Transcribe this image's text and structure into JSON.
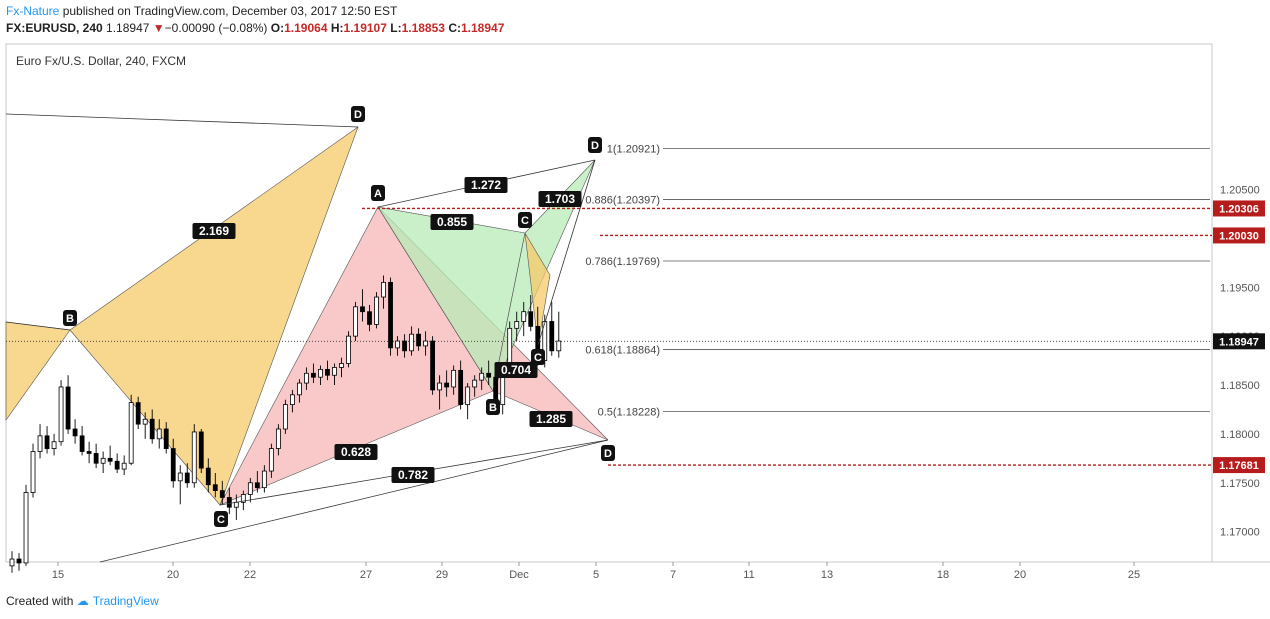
{
  "header": {
    "author": "Fx-Nature",
    "published": "published on TradingView.com, December 03, 2017 12:50 EST",
    "symbol": "FX:EURUSD, 240",
    "last": "1.18947",
    "change": "−0.00090 (−0.08%)",
    "open_label": "O:",
    "open": "1.19064",
    "high_label": "H:",
    "high": "1.19107",
    "low_label": "L:",
    "low": "1.18853",
    "close_label": "C:",
    "close": "1.18947"
  },
  "footer": {
    "created_with": "Created with",
    "brand": "TradingView"
  },
  "chart_data": {
    "type": "candlestick",
    "title": "Euro Fx/U.S. Dollar, 240, FXCM",
    "x_ticks": [
      "15",
      "20",
      "22",
      "27",
      "29",
      "Dec",
      "5",
      "7",
      "11",
      "13",
      "18",
      "20",
      "25"
    ],
    "y_ticks": [
      "1.17000",
      "1.17500",
      "1.18000",
      "1.18500",
      "1.19000",
      "1.19500",
      "1.20000",
      "1.20500"
    ],
    "ylim": [
      1.1665,
      1.2105
    ],
    "last_price": 1.18947,
    "price_labels": [
      {
        "value": 1.20306,
        "text": "1.20306",
        "color": "#b71c1c"
      },
      {
        "value": 1.2003,
        "text": "1.20030",
        "color": "#b71c1c"
      },
      {
        "value": 1.18947,
        "text": "1.18947",
        "color": "#111111"
      },
      {
        "value": 1.17681,
        "text": "1.17681",
        "color": "#b71c1c"
      }
    ],
    "fib_levels": [
      {
        "label": "1(1.20921)",
        "value": 1.20921
      },
      {
        "label": "0.886(1.20397)",
        "value": 1.20397
      },
      {
        "label": "0.786(1.19769)",
        "value": 1.19769
      },
      {
        "label": "0.618(1.18864)",
        "value": 1.18864
      },
      {
        "label": "0.5(1.18228)",
        "value": 1.18228
      }
    ],
    "horizontal_dashed": [
      1.20306,
      1.2003,
      1.17681
    ],
    "pattern_points": [
      {
        "label": "B"
      },
      {
        "label": "C"
      },
      {
        "label": "D"
      },
      {
        "label": "A"
      },
      {
        "label": "B"
      },
      {
        "label": "C"
      },
      {
        "label": "D"
      },
      {
        "label": "C"
      },
      {
        "label": "D"
      }
    ],
    "ratios": [
      "2.169",
      "1.272",
      "0.855",
      "1.703",
      "0.704",
      "1.285",
      "0.628",
      "0.782"
    ],
    "colors": {
      "bull": "#ffffff",
      "bear": "#000000",
      "wick": "#000000",
      "orange_fill": "#f5c96a",
      "pink_fill": "#f7b7b7",
      "green_fill": "#b7ebb7",
      "dashed_line": "#b71c1c",
      "accent": "#2196f3"
    },
    "candles": [
      [
        1.1665,
        1.168,
        1.1658,
        1.1672
      ],
      [
        1.1672,
        1.1678,
        1.166,
        1.1668
      ],
      [
        1.1668,
        1.1748,
        1.1665,
        1.174
      ],
      [
        1.174,
        1.179,
        1.1735,
        1.1782
      ],
      [
        1.1782,
        1.181,
        1.1775,
        1.1798
      ],
      [
        1.1798,
        1.1808,
        1.178,
        1.1785
      ],
      [
        1.1785,
        1.18,
        1.1778,
        1.1792
      ],
      [
        1.1792,
        1.1855,
        1.1788,
        1.1848
      ],
      [
        1.1848,
        1.186,
        1.18,
        1.1805
      ],
      [
        1.1805,
        1.1815,
        1.179,
        1.1798
      ],
      [
        1.1798,
        1.1808,
        1.1778,
        1.1782
      ],
      [
        1.1782,
        1.1792,
        1.177,
        1.178
      ],
      [
        1.178,
        1.179,
        1.1765,
        1.177
      ],
      [
        1.177,
        1.1782,
        1.176,
        1.1775
      ],
      [
        1.1775,
        1.1788,
        1.1768,
        1.1772
      ],
      [
        1.1772,
        1.178,
        1.176,
        1.1764
      ],
      [
        1.1764,
        1.1778,
        1.1758,
        1.177
      ],
      [
        1.177,
        1.184,
        1.1768,
        1.1832
      ],
      [
        1.1832,
        1.1838,
        1.1805,
        1.181
      ],
      [
        1.181,
        1.1822,
        1.1795,
        1.1815
      ],
      [
        1.1815,
        1.1825,
        1.179,
        1.1795
      ],
      [
        1.1795,
        1.1815,
        1.1785,
        1.1805
      ],
      [
        1.1805,
        1.1812,
        1.178,
        1.1785
      ],
      [
        1.1785,
        1.1795,
        1.1745,
        1.1752
      ],
      [
        1.1752,
        1.1768,
        1.1728,
        1.176
      ],
      [
        1.176,
        1.177,
        1.1745,
        1.175
      ],
      [
        1.175,
        1.181,
        1.1745,
        1.1802
      ],
      [
        1.1802,
        1.1805,
        1.176,
        1.1765
      ],
      [
        1.1765,
        1.1775,
        1.174,
        1.1748
      ],
      [
        1.1748,
        1.176,
        1.1735,
        1.1742
      ],
      [
        1.1742,
        1.1752,
        1.1728,
        1.1735
      ],
      [
        1.1735,
        1.1745,
        1.1718,
        1.1725
      ],
      [
        1.1725,
        1.1738,
        1.1712,
        1.173
      ],
      [
        1.173,
        1.1742,
        1.1722,
        1.1738
      ],
      [
        1.1738,
        1.1755,
        1.173,
        1.175
      ],
      [
        1.175,
        1.1762,
        1.174,
        1.1745
      ],
      [
        1.1745,
        1.1768,
        1.174,
        1.1762
      ],
      [
        1.1762,
        1.179,
        1.1755,
        1.1785
      ],
      [
        1.1785,
        1.181,
        1.1778,
        1.1805
      ],
      [
        1.1805,
        1.1835,
        1.18,
        1.183
      ],
      [
        1.183,
        1.1845,
        1.1822,
        1.184
      ],
      [
        1.184,
        1.1856,
        1.1832,
        1.1852
      ],
      [
        1.1852,
        1.1868,
        1.1845,
        1.1862
      ],
      [
        1.1862,
        1.1872,
        1.1852,
        1.1858
      ],
      [
        1.1858,
        1.187,
        1.185,
        1.1866
      ],
      [
        1.1866,
        1.1875,
        1.1855,
        1.186
      ],
      [
        1.186,
        1.1872,
        1.185,
        1.1868
      ],
      [
        1.1868,
        1.1878,
        1.1858,
        1.1872
      ],
      [
        1.1872,
        1.1905,
        1.1868,
        1.19
      ],
      [
        1.19,
        1.1935,
        1.1895,
        1.193
      ],
      [
        1.193,
        1.1948,
        1.1915,
        1.1925
      ],
      [
        1.1925,
        1.1932,
        1.1905,
        1.1912
      ],
      [
        1.1912,
        1.1945,
        1.1908,
        1.194
      ],
      [
        1.194,
        1.1962,
        1.1928,
        1.1955
      ],
      [
        1.1955,
        1.196,
        1.188,
        1.1888
      ],
      [
        1.1888,
        1.19,
        1.188,
        1.1895
      ],
      [
        1.1895,
        1.1902,
        1.1878,
        1.1885
      ],
      [
        1.1885,
        1.191,
        1.188,
        1.1902
      ],
      [
        1.1902,
        1.1908,
        1.1885,
        1.189
      ],
      [
        1.189,
        1.1905,
        1.188,
        1.1895
      ],
      [
        1.1895,
        1.19,
        1.184,
        1.1845
      ],
      [
        1.1845,
        1.186,
        1.1825,
        1.1852
      ],
      [
        1.1852,
        1.1865,
        1.1838,
        1.1848
      ],
      [
        1.1848,
        1.187,
        1.184,
        1.1865
      ],
      [
        1.1865,
        1.1875,
        1.1825,
        1.183
      ],
      [
        1.183,
        1.1852,
        1.1815,
        1.1848
      ],
      [
        1.1848,
        1.186,
        1.1838,
        1.1855
      ],
      [
        1.1855,
        1.1868,
        1.1845,
        1.1862
      ],
      [
        1.1862,
        1.1875,
        1.185,
        1.1858
      ],
      [
        1.1858,
        1.187,
        1.1822,
        1.183
      ],
      [
        1.183,
        1.187,
        1.182,
        1.1865
      ],
      [
        1.1865,
        1.1915,
        1.186,
        1.1908
      ],
      [
        1.1908,
        1.1925,
        1.1895,
        1.1915
      ],
      [
        1.1915,
        1.1935,
        1.19,
        1.1925
      ],
      [
        1.1925,
        1.1942,
        1.1905,
        1.191
      ],
      [
        1.191,
        1.193,
        1.187,
        1.1875
      ],
      [
        1.1875,
        1.1922,
        1.1868,
        1.1915
      ],
      [
        1.1915,
        1.1935,
        1.188,
        1.1885
      ],
      [
        1.1885,
        1.1925,
        1.1878,
        1.1895
      ]
    ]
  }
}
